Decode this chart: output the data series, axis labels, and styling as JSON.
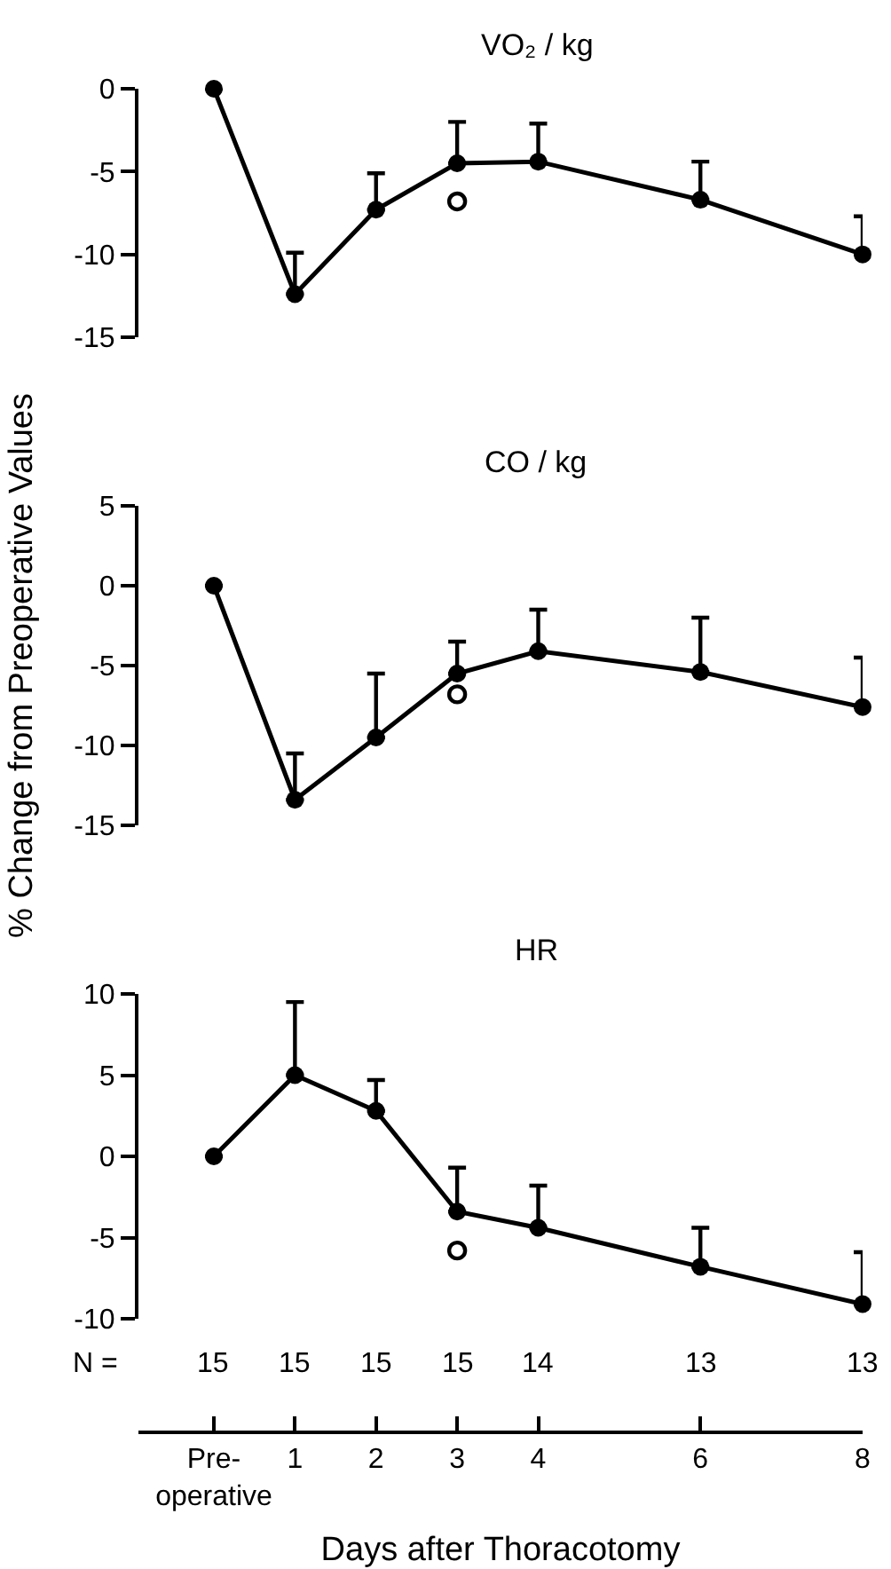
{
  "chart_data": [
    {
      "type": "line",
      "title": "VO₂ / kg",
      "x": [
        0,
        1,
        2,
        3,
        4,
        6,
        8
      ],
      "xlim": [
        -0.93,
        8
      ],
      "ylim": [
        -15,
        0
      ],
      "yticks": [
        0,
        -5,
        -10,
        -15
      ],
      "tick_labels": "y",
      "marker": "circle",
      "series": [
        {
          "color": "#000000",
          "values": [
            0,
            -12.4,
            -7.3,
            -4.5,
            -4.4,
            -6.7,
            -10.0
          ],
          "errors": [
            null,
            [
              -12.4,
              -9.9
            ],
            [
              -7.3,
              -5.1
            ],
            [
              -4.5,
              -2.0
            ],
            [
              -4.4,
              -2.1
            ],
            [
              -6.7,
              -4.4
            ],
            [
              -10.0,
              -7.7
            ]
          ]
        },
        {
          "type": "scatter",
          "color": "#000000",
          "values": [
            null,
            null,
            null,
            -6.8,
            null,
            null,
            null
          ]
        }
      ]
    },
    {
      "type": "line",
      "title": "CO / kg",
      "ylabel": "% Change from Preoperative Values",
      "x": [
        0,
        1,
        2,
        3,
        4,
        6,
        8
      ],
      "xlim": [
        -0.93,
        8
      ],
      "ylim": [
        -15,
        5
      ],
      "yticks": [
        5,
        0,
        -5,
        -10,
        -15
      ],
      "tick_labels": "y",
      "marker": "circle",
      "series": [
        {
          "color": "#000000",
          "values": [
            0,
            -13.4,
            -9.5,
            -5.5,
            -4.1,
            -5.4,
            -7.6
          ],
          "errors": [
            null,
            [
              -13.4,
              -10.5
            ],
            [
              -9.5,
              -5.5
            ],
            [
              -5.5,
              -3.5
            ],
            [
              -4.1,
              -1.5
            ],
            [
              -5.4,
              -2.0
            ],
            [
              -7.6,
              -4.5
            ]
          ]
        },
        {
          "type": "scatter",
          "color": "#000000",
          "values": [
            null,
            null,
            null,
            -6.8,
            null,
            null,
            null
          ]
        }
      ]
    },
    {
      "type": "line",
      "title": "HR",
      "xlabel": "Days after Thoracotomy",
      "x": [
        0,
        1,
        2,
        3,
        4,
        6,
        8
      ],
      "xlim": [
        -0.93,
        8
      ],
      "ylim": [
        -10,
        10
      ],
      "yticks": [
        10,
        5,
        0,
        -5,
        -10
      ],
      "marker": "circle",
      "xticks": [
        {
          "value": 0,
          "label": "Pre-\noperative"
        },
        1,
        2,
        3,
        4,
        6,
        8
      ],
      "annotations": [
        "N =",
        "15",
        "15",
        "15",
        "15",
        "14",
        "13",
        "13"
      ],
      "series": [
        {
          "color": "#000000",
          "values": [
            0,
            5.0,
            2.8,
            -3.4,
            -4.4,
            -6.8,
            -9.1
          ],
          "errors": [
            null,
            [
              5.0,
              9.5
            ],
            [
              2.8,
              4.7
            ],
            [
              -3.4,
              -0.7
            ],
            [
              -4.4,
              -1.8
            ],
            [
              -6.8,
              -4.4
            ],
            [
              -9.1,
              -5.9
            ]
          ]
        },
        {
          "type": "scatter",
          "color": "#000000",
          "values": [
            null,
            null,
            null,
            -5.8,
            null,
            null,
            null
          ]
        }
      ]
    }
  ]
}
